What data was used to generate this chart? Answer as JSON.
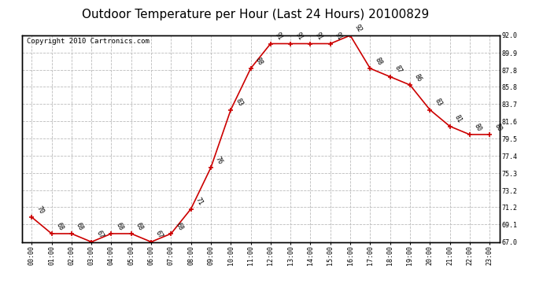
{
  "title": "Outdoor Temperature per Hour (Last 24 Hours) 20100829",
  "copyright": "Copyright 2010 Cartronics.com",
  "hours": [
    "00:00",
    "01:00",
    "02:00",
    "03:00",
    "04:00",
    "05:00",
    "06:00",
    "07:00",
    "08:00",
    "09:00",
    "10:00",
    "11:00",
    "12:00",
    "13:00",
    "14:00",
    "15:00",
    "16:00",
    "17:00",
    "18:00",
    "19:00",
    "20:00",
    "21:00",
    "22:00",
    "23:00"
  ],
  "temps": [
    70,
    68,
    68,
    67,
    68,
    68,
    67,
    68,
    71,
    76,
    83,
    88,
    91,
    91,
    91,
    91,
    92,
    88,
    87,
    86,
    83,
    81,
    80,
    80
  ],
  "ylim_min": 67.0,
  "ylim_max": 92.0,
  "yticks": [
    67.0,
    69.1,
    71.2,
    73.2,
    75.3,
    77.4,
    79.5,
    81.6,
    83.7,
    85.8,
    87.8,
    89.9,
    92.0
  ],
  "line_color": "#cc0000",
  "marker_color": "#cc0000",
  "bg_color": "#ffffff",
  "grid_color": "#bbbbbb",
  "title_fontsize": 11,
  "copyright_fontsize": 6.5,
  "label_fontsize": 6,
  "tick_fontsize": 6
}
